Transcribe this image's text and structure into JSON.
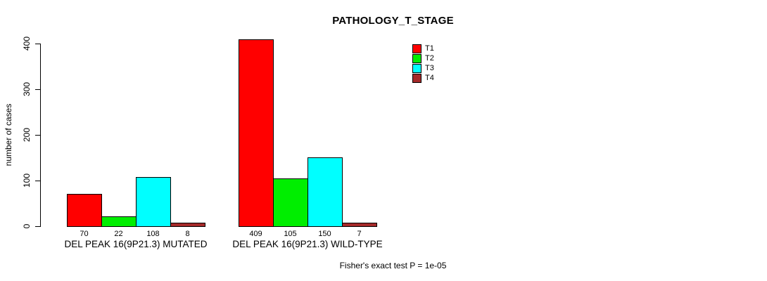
{
  "chart_data": {
    "type": "bar",
    "title": "PATHOLOGY_T_STAGE",
    "categories": [
      "DEL PEAK 16(9P21.3) MUTATED",
      "DEL PEAK 16(9P21.3) WILD-TYPE"
    ],
    "series": [
      {
        "name": "T1",
        "color": "#ff0000",
        "values": [
          70,
          409
        ]
      },
      {
        "name": "T2",
        "color": "#00ee00",
        "values": [
          22,
          105
        ]
      },
      {
        "name": "T3",
        "color": "#00ffff",
        "values": [
          108,
          150
        ]
      },
      {
        "name": "T4",
        "color": "#a52a2a",
        "values": [
          8,
          7
        ]
      }
    ],
    "ylabel": "number of cases",
    "ylim": [
      0,
      400
    ],
    "yticks": [
      0,
      100,
      200,
      300,
      400
    ],
    "bar_value_labels": [
      [
        "70",
        "22",
        "108",
        "8"
      ],
      [
        "409",
        "105",
        "150",
        "7"
      ]
    ],
    "legend_position": "top-right",
    "grid": false,
    "annotation": "Fisher's exact test P = 1e-05"
  }
}
